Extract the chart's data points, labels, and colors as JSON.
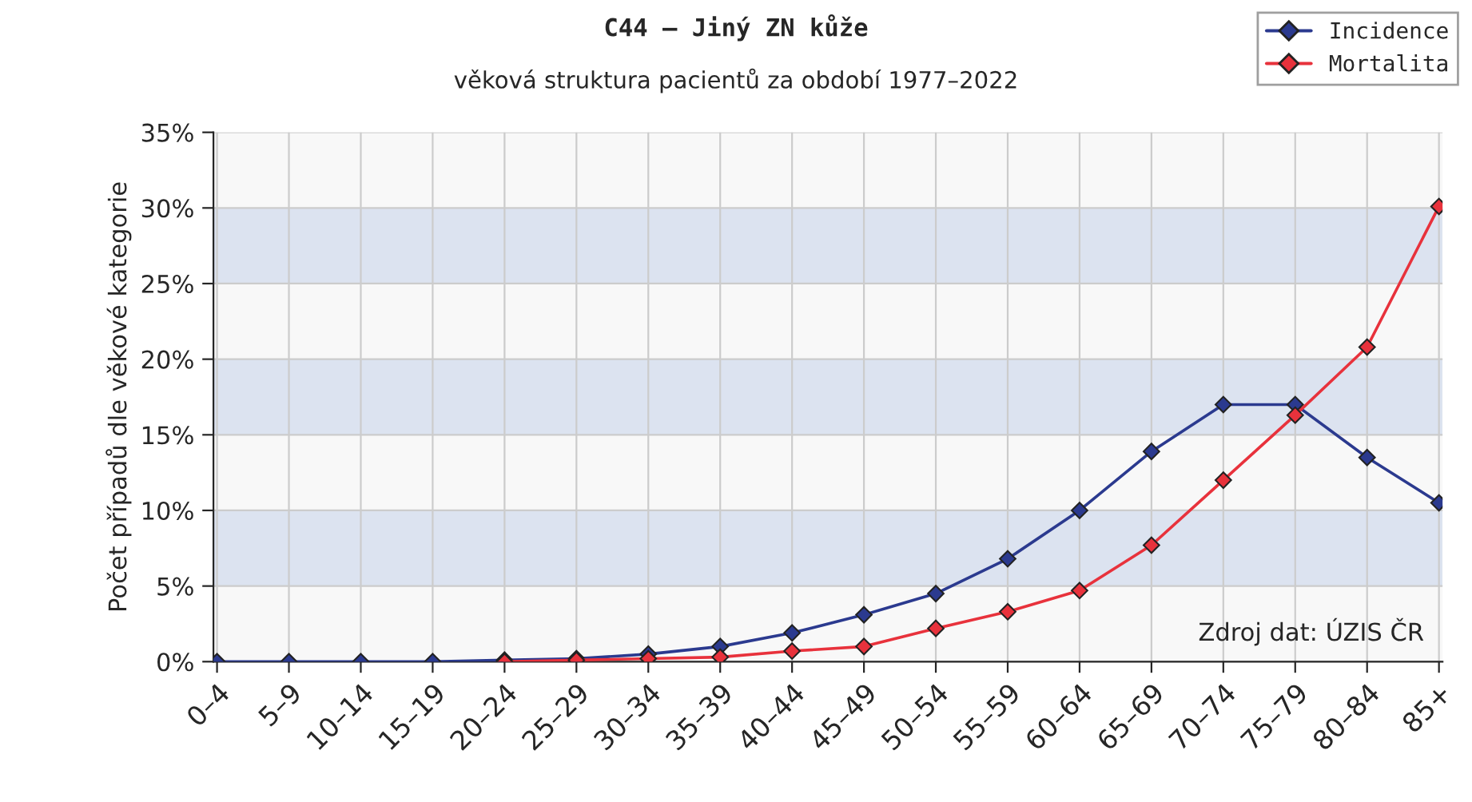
{
  "chart_data": {
    "type": "line",
    "title": "C44 – Jiný ZN kůže",
    "subtitle": "věková struktura pacientů za období 1977–2022",
    "ylabel": "Počet případů dle věkové kategorie",
    "categories": [
      "0–4",
      "5–9",
      "10–14",
      "15–19",
      "20–24",
      "25–29",
      "30–34",
      "35–39",
      "40–44",
      "45–49",
      "50–54",
      "55–59",
      "60–64",
      "65–69",
      "70–74",
      "75–79",
      "80–84",
      "85+"
    ],
    "series": [
      {
        "name": "Incidence",
        "color": "#2b3a8f",
        "values": [
          0,
          0,
          0,
          0,
          0.1,
          0.2,
          0.5,
          1.0,
          1.9,
          3.1,
          4.5,
          6.8,
          10.0,
          13.9,
          17.0,
          17.0,
          13.5,
          10.5
        ]
      },
      {
        "name": "Mortalita",
        "color": "#e8323c",
        "values": [
          null,
          null,
          null,
          null,
          0.0,
          0.1,
          0.2,
          0.3,
          0.7,
          1.0,
          2.2,
          3.3,
          4.7,
          7.7,
          12.0,
          16.3,
          20.8,
          30.1
        ]
      }
    ],
    "ylim": [
      0,
      35
    ],
    "yticks": [
      {
        "value": 0,
        "label": "0%"
      },
      {
        "value": 5,
        "label": "5%"
      },
      {
        "value": 10,
        "label": "10%"
      },
      {
        "value": 15,
        "label": "15%"
      },
      {
        "value": 20,
        "label": "20%"
      },
      {
        "value": 25,
        "label": "25%"
      },
      {
        "value": 30,
        "label": "30%"
      },
      {
        "value": 35,
        "label": "35%"
      }
    ],
    "bands": [
      {
        "axis": "y",
        "from": 5,
        "to": 10,
        "color": "#dce3f0"
      },
      {
        "axis": "y",
        "from": 15,
        "to": 20,
        "color": "#dce3f0"
      },
      {
        "axis": "y",
        "from": 25,
        "to": 30,
        "color": "#dce3f0"
      }
    ],
    "grid": true,
    "legend": "top right",
    "marker": "diamond",
    "line_style": "solid",
    "annotations": [
      "Zdroj dat: ÚZIS ČR"
    ]
  }
}
